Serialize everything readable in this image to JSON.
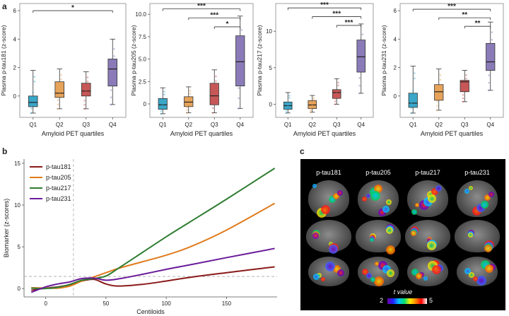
{
  "panel_a": {
    "label": "a",
    "charts": [
      {
        "ylabel": "Plasma p-tau181 (z-score)",
        "xlabel": "Amyloid PET quartiles",
        "yticks": [
          "0",
          "2",
          "4",
          "6"
        ],
        "ymin": -1.5,
        "ymax": 6.5,
        "categories": [
          "Q1",
          "Q2",
          "Q3",
          "Q4"
        ],
        "boxes": [
          {
            "q1": -0.75,
            "med": -0.45,
            "q3": 0.0,
            "wlo": -1.2,
            "whi": 1.8,
            "color": "#3aa6c8"
          },
          {
            "q1": -0.1,
            "med": 0.2,
            "q3": 1.0,
            "wlo": -0.9,
            "whi": 1.9,
            "color": "#e6a35a"
          },
          {
            "q1": 0.0,
            "med": 0.35,
            "q3": 0.9,
            "wlo": -0.9,
            "whi": 1.7,
            "color": "#c75757"
          },
          {
            "q1": 0.7,
            "med": 1.9,
            "q3": 2.6,
            "wlo": -0.6,
            "whi": 4.0,
            "color": "#8a7bb8"
          }
        ],
        "brackets": [
          {
            "from": 0,
            "to": 3,
            "label": "*",
            "y": 6.0
          }
        ]
      },
      {
        "ylabel": "Plasma p-tau205 (z-score)",
        "xlabel": "Amyloid PET quartiles",
        "yticks": [
          "0",
          "2.5",
          "5.0",
          "7.5",
          "10.0"
        ],
        "ymin": -1.5,
        "ymax": 11.2,
        "categories": [
          "Q1",
          "Q2",
          "Q3",
          "Q4"
        ],
        "boxes": [
          {
            "q1": -0.6,
            "med": -0.1,
            "q3": 0.6,
            "wlo": -1.1,
            "whi": 1.8,
            "color": "#3aa6c8"
          },
          {
            "q1": -0.3,
            "med": 0.2,
            "q3": 0.8,
            "wlo": -1.0,
            "whi": 1.9,
            "color": "#e6a35a"
          },
          {
            "q1": -0.1,
            "med": 0.9,
            "q3": 2.3,
            "wlo": -1.0,
            "whi": 3.8,
            "color": "#c75757"
          },
          {
            "q1": 2.0,
            "med": 4.7,
            "q3": 7.6,
            "wlo": -0.5,
            "whi": 9.8,
            "color": "#8a7bb8"
          }
        ],
        "brackets": [
          {
            "from": 0,
            "to": 3,
            "label": "***",
            "y": 10.6
          },
          {
            "from": 1,
            "to": 3,
            "label": "***",
            "y": 9.6
          },
          {
            "from": 2,
            "to": 3,
            "label": "*",
            "y": 8.6
          }
        ]
      },
      {
        "ylabel": "Plasma p-tau217 (z-score)",
        "xlabel": "Amyloid PET quartiles",
        "yticks": [
          "0",
          "5",
          "10"
        ],
        "ymin": -1.8,
        "ymax": 13.8,
        "categories": [
          "Q1",
          "Q2",
          "Q3",
          "Q4"
        ],
        "boxes": [
          {
            "q1": -0.7,
            "med": -0.2,
            "q3": 0.3,
            "wlo": -1.2,
            "whi": 1.6,
            "color": "#3aa6c8"
          },
          {
            "q1": -0.6,
            "med": -0.1,
            "q3": 0.5,
            "wlo": -1.1,
            "whi": 1.2,
            "color": "#e6a35a"
          },
          {
            "q1": 0.8,
            "med": 1.6,
            "q3": 2.0,
            "wlo": 0.0,
            "whi": 3.5,
            "color": "#c75757"
          },
          {
            "q1": 4.4,
            "med": 6.5,
            "q3": 8.8,
            "wlo": 1.5,
            "whi": 11.0,
            "color": "#8a7bb8"
          }
        ],
        "brackets": [
          {
            "from": 0,
            "to": 3,
            "label": "***",
            "y": 13.2
          },
          {
            "from": 1,
            "to": 3,
            "label": "***",
            "y": 12.0
          },
          {
            "from": 2,
            "to": 3,
            "label": "***",
            "y": 10.8
          }
        ]
      },
      {
        "ylabel": "Plasma p-tau231 (z-score)",
        "xlabel": "Amyloid PET quartiles",
        "yticks": [
          "0",
          "2",
          "4",
          "6"
        ],
        "ymin": -1.5,
        "ymax": 6.5,
        "categories": [
          "Q1",
          "Q2",
          "Q3",
          "Q4"
        ],
        "boxes": [
          {
            "q1": -0.8,
            "med": -0.5,
            "q3": 0.2,
            "wlo": -1.2,
            "whi": 2.1,
            "color": "#3aa6c8"
          },
          {
            "q1": -0.3,
            "med": 0.3,
            "q3": 0.8,
            "wlo": -1.0,
            "whi": 1.9,
            "color": "#e6a35a"
          },
          {
            "q1": 0.3,
            "med": 1.0,
            "q3": 1.1,
            "wlo": -0.4,
            "whi": 1.8,
            "color": "#c75757"
          },
          {
            "q1": 1.8,
            "med": 2.4,
            "q3": 3.7,
            "wlo": 0.4,
            "whi": 5.2,
            "color": "#8a7bb8"
          }
        ],
        "brackets": [
          {
            "from": 0,
            "to": 3,
            "label": "***",
            "y": 6.1
          },
          {
            "from": 1,
            "to": 3,
            "label": "**",
            "y": 5.5
          },
          {
            "from": 2,
            "to": 3,
            "label": "**",
            "y": 4.9
          }
        ]
      }
    ]
  },
  "panel_b": {
    "label": "b",
    "ylabel": "Biomarker (z-scores)",
    "xlabel": "Centiloids",
    "yticks": [
      "0",
      "5",
      "10",
      "15"
    ],
    "xticks": [
      "0",
      "50",
      "100",
      "150"
    ],
    "xrange": [
      -18,
      192
    ],
    "yrange": [
      -1,
      15.5
    ],
    "vline_x": 23,
    "hline_y": 1.45,
    "legend": [
      "p-tau181",
      "p-tau205",
      "p-tau217",
      "p-tau231"
    ],
    "series": [
      {
        "name": "p-tau181",
        "color": "#8b1a1a",
        "x": [
          -12,
          0,
          10,
          20,
          30,
          40,
          50,
          60,
          80,
          100,
          120,
          150,
          190
        ],
        "y": [
          -0.2,
          0.05,
          0.2,
          0.45,
          0.9,
          1.1,
          0.55,
          0.3,
          0.5,
          0.9,
          1.35,
          1.9,
          2.6
        ]
      },
      {
        "name": "p-tau205",
        "color": "#e07b1c",
        "x": [
          -12,
          0,
          10,
          20,
          30,
          40,
          50,
          60,
          80,
          100,
          120,
          150,
          190
        ],
        "y": [
          0.1,
          0.05,
          0.05,
          0.3,
          0.9,
          1.4,
          1.9,
          2.4,
          3.2,
          4.0,
          5.0,
          7.0,
          10.2
        ]
      },
      {
        "name": "p-tau217",
        "color": "#2e7d32",
        "x": [
          -12,
          0,
          10,
          20,
          30,
          40,
          50,
          60,
          80,
          100,
          120,
          150,
          190
        ],
        "y": [
          0.05,
          0.0,
          0.15,
          0.5,
          1.0,
          1.2,
          1.5,
          2.4,
          4.3,
          6.2,
          8.0,
          10.7,
          14.4
        ]
      },
      {
        "name": "p-tau231",
        "color": "#6a1b9a",
        "x": [
          -12,
          0,
          10,
          20,
          30,
          40,
          50,
          60,
          80,
          100,
          120,
          150,
          190
        ],
        "y": [
          -0.45,
          0.2,
          0.55,
          0.8,
          1.2,
          1.25,
          1.0,
          1.15,
          1.7,
          2.3,
          2.85,
          3.7,
          4.8
        ]
      }
    ]
  },
  "panel_c": {
    "label": "c",
    "columns": [
      "p-tau181",
      "p-tau205",
      "p-tau217",
      "p-tau231"
    ],
    "colorbar_label": "t value",
    "colorbar_min": "2",
    "colorbar_max": "5"
  }
}
